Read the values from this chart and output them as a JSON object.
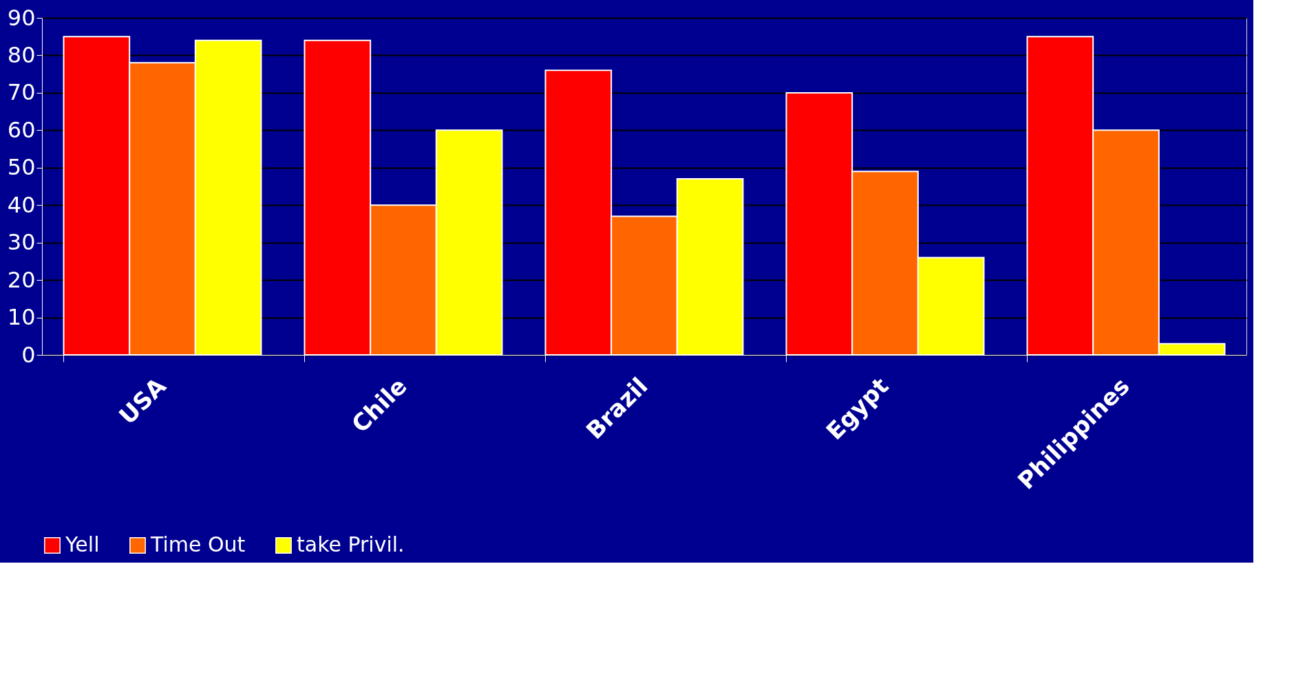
{
  "chart_data": {
    "type": "bar",
    "categories": [
      "USA",
      "Chile",
      "Brazil",
      "Egypt",
      "Philippines"
    ],
    "series": [
      {
        "name": "Yell",
        "color": "#ff0000",
        "values": [
          85,
          84,
          76,
          70,
          85
        ]
      },
      {
        "name": "Time Out",
        "color": "#ff6600",
        "values": [
          78,
          40,
          37,
          49,
          60
        ]
      },
      {
        "name": "take Privil.",
        "color": "#ffff00",
        "values": [
          84,
          60,
          47,
          26,
          3
        ]
      }
    ],
    "ylim": [
      0,
      90
    ],
    "yticks": [
      0,
      10,
      20,
      30,
      40,
      50,
      60,
      70,
      80,
      90
    ],
    "grid": "y",
    "legend": "bottom"
  }
}
